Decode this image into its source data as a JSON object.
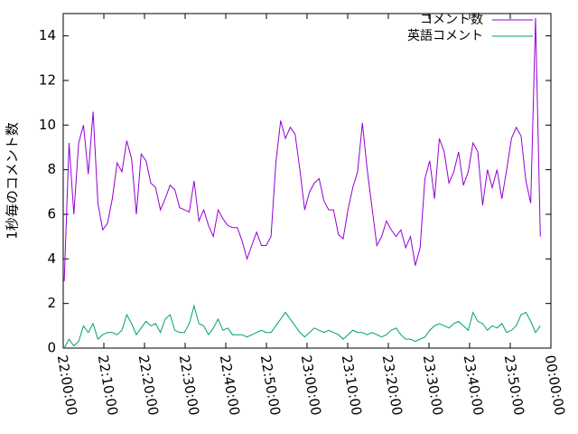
{
  "chart_data": {
    "type": "line",
    "y_label": "1秒毎のコメント数",
    "x": [
      15,
      86,
      157,
      228,
      299,
      370,
      441,
      512,
      583,
      654,
      725,
      796,
      867,
      938,
      1009,
      1080,
      1151,
      1222,
      1293,
      1364,
      1435,
      1506,
      1577,
      1648,
      1719,
      1790,
      1861,
      1932,
      2003,
      2074,
      2145,
      2216,
      2287,
      2358,
      2429,
      2500,
      2571,
      2642,
      2713,
      2784,
      2855,
      2926,
      2997,
      3068,
      3139,
      3210,
      3281,
      3352,
      3423,
      3494,
      3565,
      3636,
      3707,
      3778,
      3849,
      3920,
      3991,
      4062,
      4133,
      4204,
      4275,
      4346,
      4417,
      4488,
      4559,
      4630,
      4701,
      4772,
      4843,
      4914,
      4985,
      5056,
      5127,
      5198,
      5269,
      5340,
      5411,
      5482,
      5553,
      5624,
      5695,
      5766,
      5837,
      5908,
      5979,
      6050,
      6121,
      6192,
      6263,
      6334,
      6405,
      6476,
      6547,
      6618,
      6689,
      6760,
      6831,
      6902,
      6973,
      7044
    ],
    "series": [
      {
        "name": "コメント数",
        "color": "#9400d3",
        "values": [
          3.0,
          9.2,
          6,
          9.2,
          10,
          7.8,
          10.6,
          6.5,
          5.3,
          5.6,
          6.7,
          8.3,
          7.9,
          9.3,
          8.5,
          6.0,
          8.7,
          8.4,
          7.4,
          7.2,
          6.2,
          6.7,
          7.3,
          7.1,
          6.3,
          6.2,
          6.1,
          7.5,
          5.7,
          6.2,
          5.5,
          5.0,
          6.2,
          5.8,
          5.5,
          5.4,
          5.4,
          4.8,
          4.0,
          4.6,
          5.2,
          4.6,
          4.6,
          5.0,
          8.3,
          10.2,
          9.4,
          9.9,
          9.6,
          8.0,
          6.2,
          7.0,
          7.4,
          7.6,
          6.6,
          6.2,
          6.2,
          5.1,
          4.9,
          6.2,
          7.2,
          7.9,
          10.1,
          8.0,
          6.3,
          4.6,
          5.0,
          5.7,
          5.3,
          5.0,
          5.3,
          4.5,
          5.0,
          3.7,
          4.5,
          7.6,
          8.4,
          6.7,
          9.4,
          8.8,
          7.4,
          7.9,
          8.8,
          7.3,
          7.9,
          9.2,
          8.8,
          6.4,
          8.0,
          7.2,
          8.0,
          6.7,
          8.0,
          9.4,
          9.9,
          9.5,
          7.5,
          6.5,
          14.8,
          5.0
        ]
      },
      {
        "name": "英語コメント",
        "color": "#009e73",
        "values": [
          0.0,
          0.4,
          0.1,
          0.3,
          1.0,
          0.7,
          1.1,
          0.4,
          0.6,
          0.7,
          0.7,
          0.6,
          0.8,
          1.5,
          1.1,
          0.6,
          0.9,
          1.2,
          1.0,
          1.1,
          0.7,
          1.3,
          1.5,
          0.8,
          0.7,
          0.7,
          1.1,
          1.9,
          1.1,
          1.0,
          0.6,
          0.9,
          1.3,
          0.8,
          0.9,
          0.6,
          0.6,
          0.6,
          0.5,
          0.6,
          0.7,
          0.8,
          0.7,
          0.7,
          1.0,
          1.3,
          1.6,
          1.3,
          1.0,
          0.7,
          0.5,
          0.7,
          0.9,
          0.8,
          0.7,
          0.8,
          0.7,
          0.6,
          0.4,
          0.6,
          0.8,
          0.7,
          0.7,
          0.6,
          0.7,
          0.6,
          0.5,
          0.6,
          0.8,
          0.9,
          0.6,
          0.4,
          0.4,
          0.3,
          0.4,
          0.5,
          0.8,
          1.0,
          1.1,
          1.0,
          0.9,
          1.1,
          1.2,
          1.0,
          0.8,
          1.6,
          1.2,
          1.1,
          0.8,
          1.0,
          0.9,
          1.1,
          0.7,
          0.8,
          1.0,
          1.5,
          1.6,
          1.2,
          0.7,
          1.0
        ]
      }
    ],
    "xlim": [
      0,
      7200
    ],
    "xticks": [
      {
        "value": 0,
        "label": "22:00:00"
      },
      {
        "value": 600,
        "label": "22:10:00"
      },
      {
        "value": 1200,
        "label": "22:20:00"
      },
      {
        "value": 1800,
        "label": "22:30:00"
      },
      {
        "value": 2400,
        "label": "22:40:00"
      },
      {
        "value": 3000,
        "label": "22:50:00"
      },
      {
        "value": 3600,
        "label": "23:00:00"
      },
      {
        "value": 4200,
        "label": "23:10:00"
      },
      {
        "value": 4800,
        "label": "23:20:00"
      },
      {
        "value": 5400,
        "label": "23:30:00"
      },
      {
        "value": 6000,
        "label": "23:40:00"
      },
      {
        "value": 6600,
        "label": "23:50:00"
      },
      {
        "value": 7200,
        "label": "00:00:00"
      }
    ],
    "ylim": [
      0,
      15
    ],
    "yticks": [
      0,
      2,
      4,
      6,
      8,
      10,
      12,
      14
    ],
    "legend": "top-right"
  }
}
